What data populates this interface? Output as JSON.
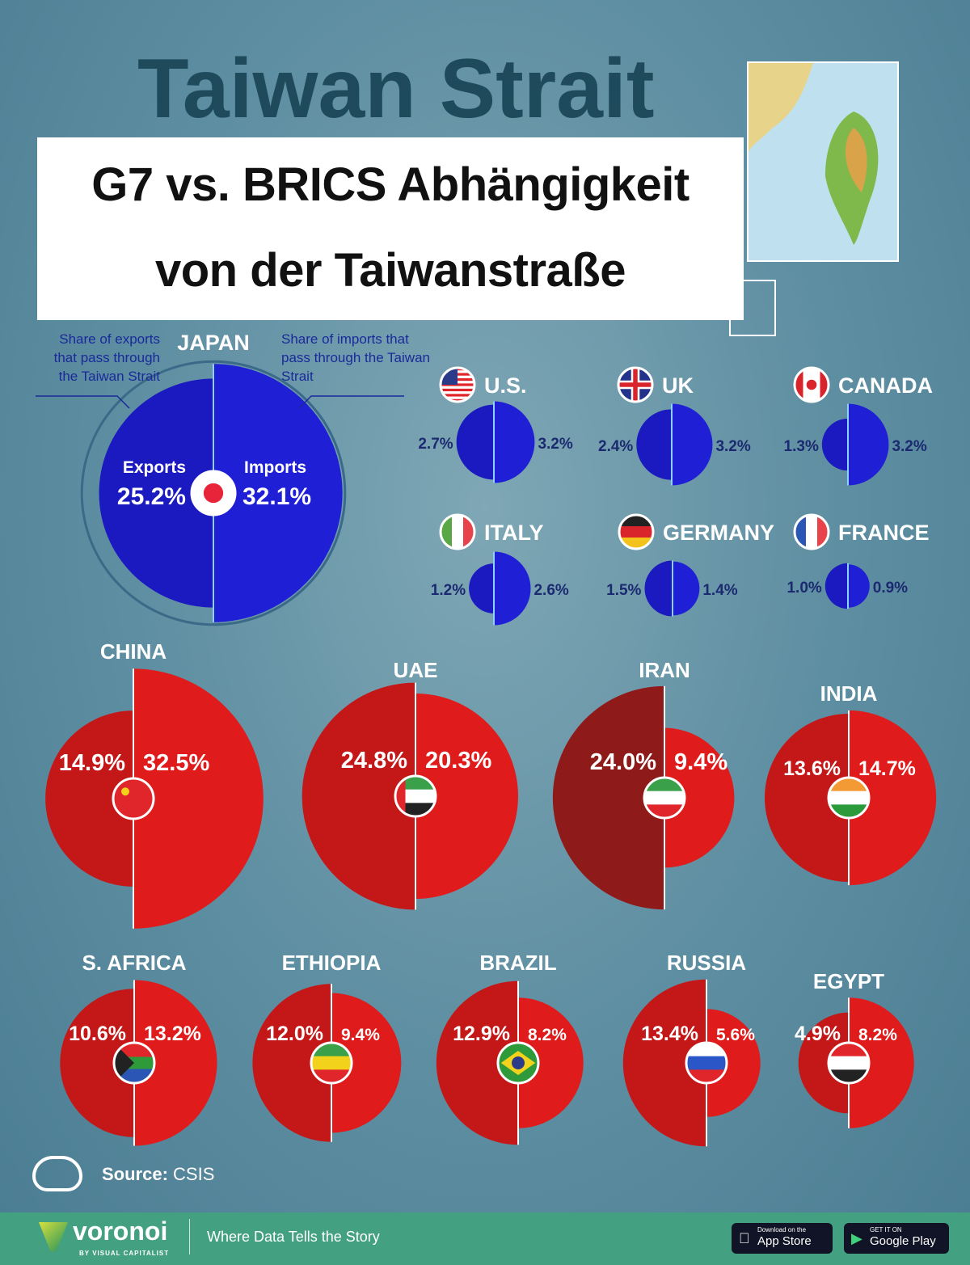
{
  "header": {
    "map_title": "Taiwan Strait",
    "title_line1": "G7 vs. BRICS Abhängigkeit",
    "title_line2": "von der Taiwanstraße"
  },
  "chart_data": {
    "type": "half-circle proportional area",
    "annotations": {
      "exports_note": "Share of exports that pass through the Taiwan Strait",
      "imports_note": "Share of imports that pass through the Taiwan Strait",
      "exports_label": "Exports",
      "imports_label": "Imports"
    },
    "unit": "%",
    "colors": {
      "g7": "#1f1fd6",
      "brics": "#e01b1b",
      "brics_dark": "#8f1a1a"
    },
    "countries": [
      {
        "name": "JAPAN",
        "group": "G7",
        "exports": 25.2,
        "imports": 32.1,
        "flag": "japan"
      },
      {
        "name": "U.S.",
        "group": "G7",
        "exports": 2.7,
        "imports": 3.2,
        "flag": "us"
      },
      {
        "name": "UK",
        "group": "G7",
        "exports": 2.4,
        "imports": 3.2,
        "flag": "uk"
      },
      {
        "name": "CANADA",
        "group": "G7",
        "exports": 1.3,
        "imports": 3.2,
        "flag": "canada"
      },
      {
        "name": "ITALY",
        "group": "G7",
        "exports": 1.2,
        "imports": 2.6,
        "flag": "italy"
      },
      {
        "name": "GERMANY",
        "group": "G7",
        "exports": 1.5,
        "imports": 1.4,
        "flag": "germany"
      },
      {
        "name": "FRANCE",
        "group": "G7",
        "exports": 1.0,
        "imports": 0.9,
        "flag": "france"
      },
      {
        "name": "CHINA",
        "group": "BRICS",
        "exports": 14.9,
        "imports": 32.5,
        "flag": "china"
      },
      {
        "name": "UAE",
        "group": "BRICS",
        "exports": 24.8,
        "imports": 20.3,
        "flag": "uae"
      },
      {
        "name": "IRAN",
        "group": "BRICS",
        "exports": 24.0,
        "imports": 9.4,
        "flag": "iran"
      },
      {
        "name": "INDIA",
        "group": "BRICS",
        "exports": 13.6,
        "imports": 14.7,
        "flag": "india"
      },
      {
        "name": "S. AFRICA",
        "group": "BRICS",
        "exports": 10.6,
        "imports": 13.2,
        "flag": "south-africa"
      },
      {
        "name": "ETHIOPIA",
        "group": "BRICS",
        "exports": 12.0,
        "imports": 9.4,
        "flag": "ethiopia"
      },
      {
        "name": "BRAZIL",
        "group": "BRICS",
        "exports": 12.9,
        "imports": 8.2,
        "flag": "brazil"
      },
      {
        "name": "RUSSIA",
        "group": "BRICS",
        "exports": 13.4,
        "imports": 5.6,
        "flag": "russia"
      },
      {
        "name": "EGYPT",
        "group": "BRICS",
        "exports": 4.9,
        "imports": 8.2,
        "flag": "egypt"
      }
    ]
  },
  "source": {
    "label": "Source:",
    "value": "CSIS"
  },
  "footer": {
    "brand": "voronoi",
    "brand_sub": "BY VISUAL CAPITALIST",
    "tagline": "Where Data Tells the Story",
    "appstore_small": "Download on the",
    "appstore": "App Store",
    "google_small": "GET IT ON",
    "google": "Google Play"
  }
}
